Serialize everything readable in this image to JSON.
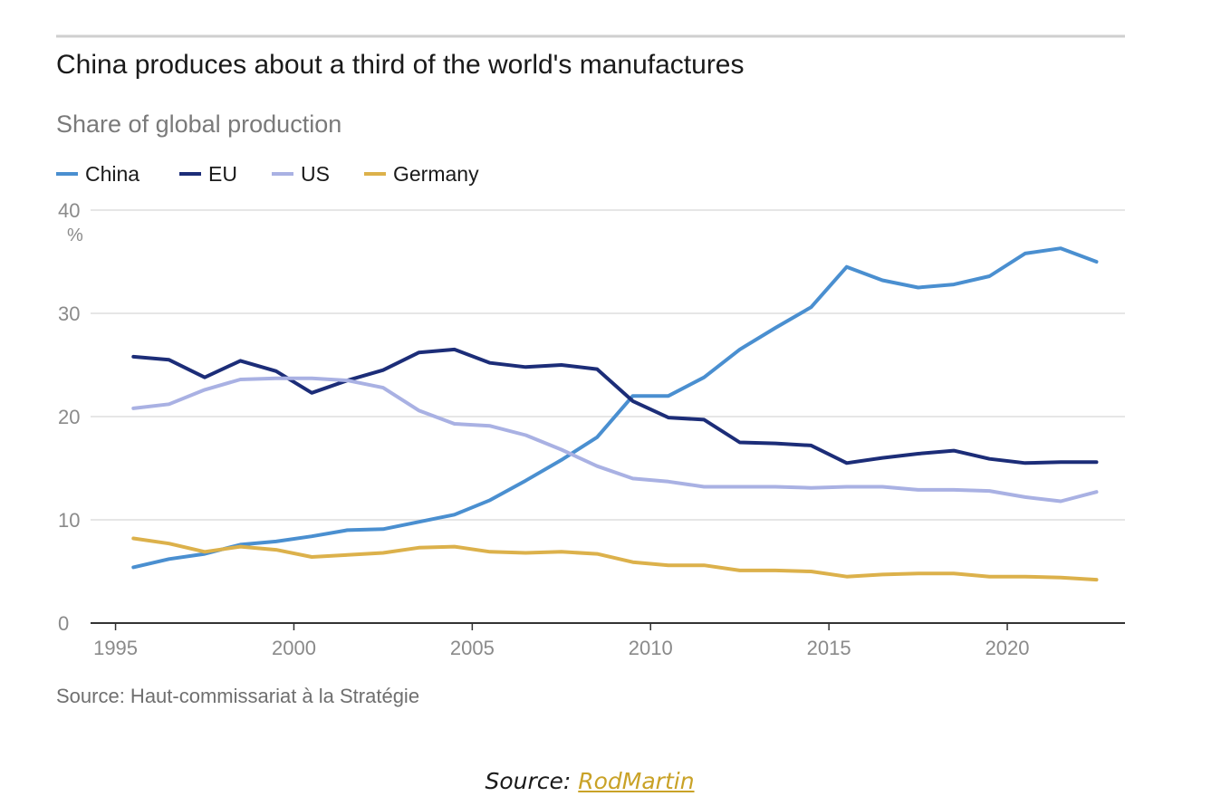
{
  "colors": {
    "China": "#4a8fd0",
    "EU": "#1c2d78",
    "US": "#a9b1e3",
    "Germany": "#dcb14b",
    "grid": "#e6e6e6",
    "axis": "#333333"
  },
  "chart_data": {
    "type": "line",
    "title": "China produces about a third of the world's manufactures",
    "subtitle": "Share of global production",
    "unit_label": "%",
    "ylim": [
      0,
      40
    ],
    "y_ticks": [
      0,
      10,
      20,
      30,
      40
    ],
    "x_ticks": [
      1995,
      2000,
      2005,
      2010,
      2015,
      2020
    ],
    "xlim": [
      1994.3,
      2023.3
    ],
    "grid": true,
    "legend_position": "top-left",
    "x": [
      1995.5,
      1996.5,
      1997.5,
      1998.5,
      1999.5,
      2000.5,
      2001.5,
      2002.5,
      2003.5,
      2004.5,
      2005.5,
      2006.5,
      2007.5,
      2008.5,
      2009.5,
      2010.5,
      2011.5,
      2012.5,
      2013.5,
      2014.5,
      2015.5,
      2016.5,
      2017.5,
      2018.5,
      2019.5,
      2020.5,
      2021.5,
      2022.5
    ],
    "series": [
      {
        "name": "China",
        "values": [
          5.4,
          6.2,
          6.7,
          7.6,
          7.9,
          8.4,
          9.0,
          9.1,
          9.8,
          10.5,
          11.9,
          13.8,
          15.8,
          18.0,
          22.0,
          22.0,
          23.8,
          26.5,
          28.6,
          30.6,
          34.5,
          33.2,
          32.5,
          32.8,
          33.6,
          35.8,
          36.3,
          35.0
        ]
      },
      {
        "name": "EU",
        "values": [
          25.8,
          25.5,
          23.8,
          25.4,
          24.4,
          22.3,
          23.5,
          24.5,
          26.2,
          26.5,
          25.2,
          24.8,
          25.0,
          24.6,
          21.5,
          19.9,
          19.7,
          17.5,
          17.4,
          17.2,
          15.5,
          16.0,
          16.4,
          16.7,
          15.9,
          15.5,
          15.6,
          15.6
        ]
      },
      {
        "name": "US",
        "values": [
          20.8,
          21.2,
          22.6,
          23.6,
          23.7,
          23.7,
          23.5,
          22.8,
          20.6,
          19.3,
          19.1,
          18.2,
          16.8,
          15.2,
          14.0,
          13.7,
          13.2,
          13.2,
          13.2,
          13.1,
          13.2,
          13.2,
          12.9,
          12.9,
          12.8,
          12.2,
          11.8,
          12.7
        ]
      },
      {
        "name": "Germany",
        "values": [
          8.2,
          7.7,
          6.9,
          7.4,
          7.1,
          6.4,
          6.6,
          6.8,
          7.3,
          7.4,
          6.9,
          6.8,
          6.9,
          6.7,
          5.9,
          5.6,
          5.6,
          5.1,
          5.1,
          5.0,
          4.5,
          4.7,
          4.8,
          4.8,
          4.5,
          4.5,
          4.4,
          4.2
        ]
      }
    ],
    "source": "Source: Haut-commissariat à la Stratégie"
  },
  "caption": {
    "prefix": "Source: ",
    "link_text": "RodMartin"
  }
}
